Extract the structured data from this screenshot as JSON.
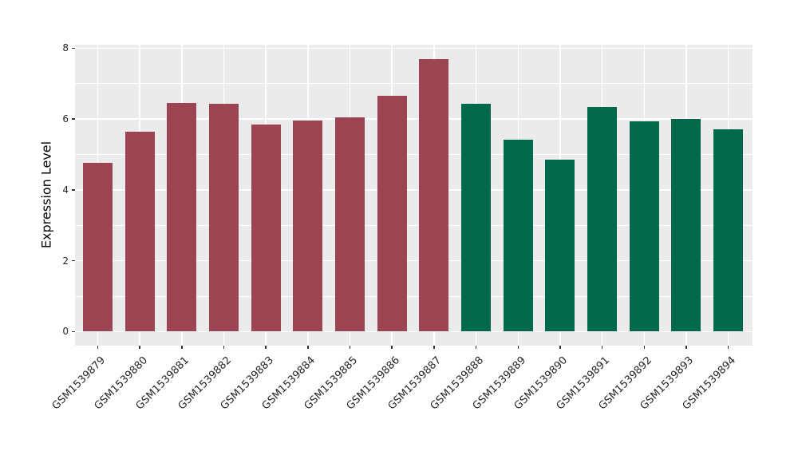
{
  "chart_data": {
    "type": "bar",
    "title": "",
    "xlabel": "",
    "ylabel": "Expression Level",
    "categories": [
      "GSM1539879",
      "GSM1539880",
      "GSM1539881",
      "GSM1539882",
      "GSM1539883",
      "GSM1539884",
      "GSM1539885",
      "GSM1539886",
      "GSM1539887",
      "GSM1539888",
      "GSM1539889",
      "GSM1539890",
      "GSM1539891",
      "GSM1539892",
      "GSM1539893",
      "GSM1539894"
    ],
    "values": [
      4.76,
      5.65,
      6.46,
      6.44,
      5.84,
      5.96,
      6.04,
      6.66,
      7.7,
      6.44,
      5.42,
      4.86,
      6.35,
      5.93,
      6.0,
      5.72
    ],
    "bar_colors": [
      "#9D4452",
      "#9D4452",
      "#9D4452",
      "#9D4452",
      "#9D4452",
      "#9D4452",
      "#9D4452",
      "#9D4452",
      "#9D4452",
      "#00684B",
      "#00684B",
      "#00684B",
      "#00684B",
      "#00684B",
      "#00684B",
      "#00684B"
    ],
    "group_colors": {
      "group_1": "#9D4452",
      "group_2": "#00684B"
    },
    "group_sizes": {
      "group_1": 9,
      "group_2": 7
    },
    "ylim": [
      -0.4,
      8.1
    ],
    "yticks_major": [
      0,
      2,
      4,
      6,
      8
    ],
    "yticks_minor": [
      1,
      3,
      5,
      7
    ],
    "ytick_labels": [
      "0",
      "2",
      "4",
      "6",
      "8"
    ],
    "grid": "on",
    "legend": "none",
    "panel_background": "#EBEBEB",
    "grid_color": "#FFFFFF",
    "tick_color": "#333333",
    "axis_text_color": "#262626",
    "axis_title_color": "#000000"
  }
}
